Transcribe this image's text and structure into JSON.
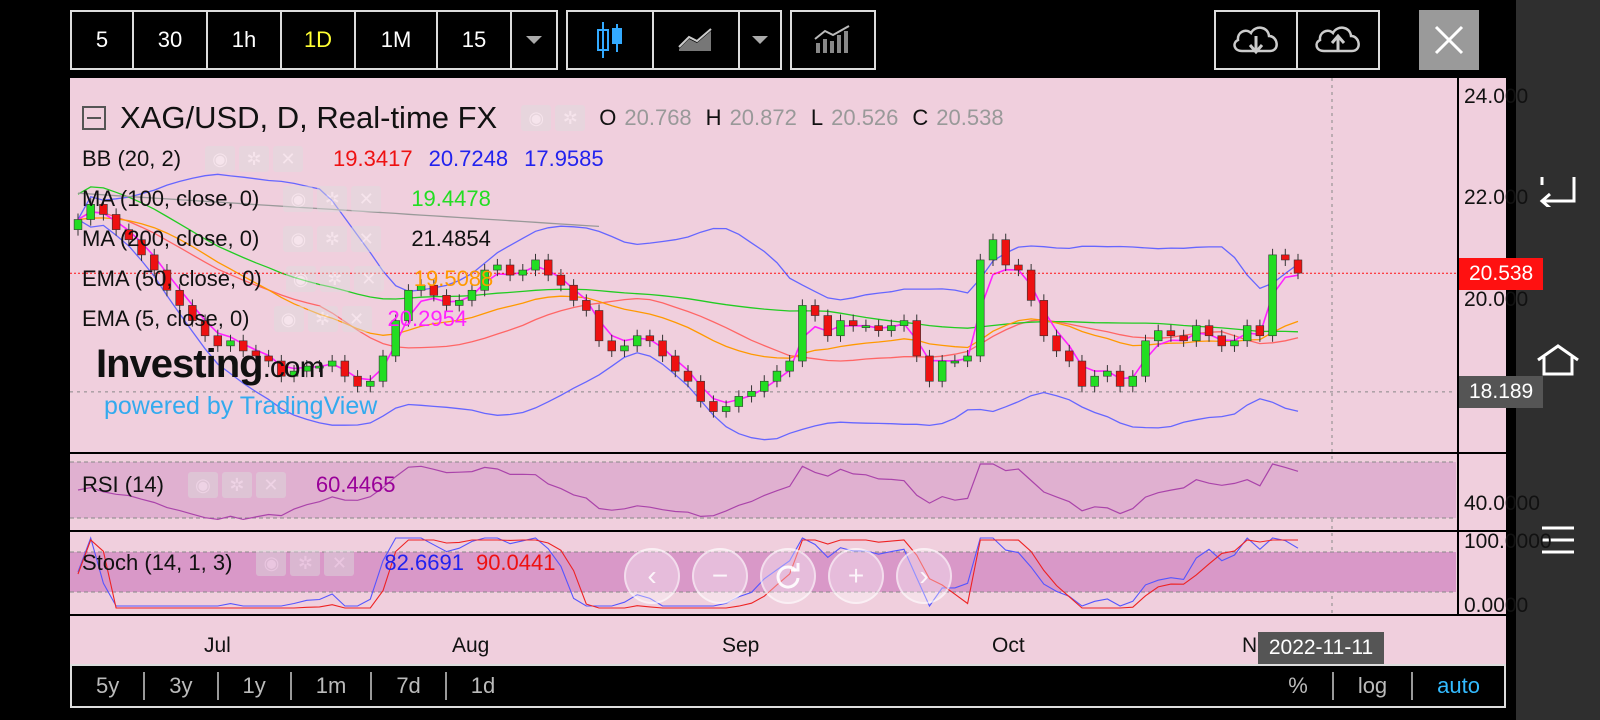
{
  "toolbar": {
    "intervals": [
      "5",
      "30",
      "1h",
      "1D",
      "1M",
      "15"
    ],
    "active_interval": "1D"
  },
  "legend": {
    "symbol": "XAG/USD, D, Real-time FX",
    "o_label": "O",
    "o_value": "20.768",
    "h_label": "H",
    "h_value": "20.872",
    "l_label": "L",
    "l_value": "20.526",
    "c_label": "C",
    "c_value": "20.538",
    "bb_label": "BB (20, 2)",
    "bb_v1": "19.3417",
    "bb_v2": "20.7248",
    "bb_v3": "17.9585",
    "ma100_label": "MA (100, close, 0)",
    "ma100_value": "19.4478",
    "ma200_label": "MA (200, close, 0)",
    "ma200_value": "21.4854",
    "ema50_label": "EMA (50, close, 0)",
    "ema50_value": "19.5088",
    "ema5_label": "EMA (5, close, 0)",
    "ema5_value": "20.2954",
    "rsi_label": "RSI (14)",
    "rsi_value": "60.4465",
    "stoch_label": "Stoch (14, 1, 3)",
    "stoch_v1": "82.6691",
    "stoch_v2": "90.0441"
  },
  "watermark": {
    "brand": "Investing",
    "brand_suffix": ".com",
    "powered": "powered by TradingView"
  },
  "price_axis": {
    "ticks": [
      "24.000",
      "22.000",
      "20.000"
    ],
    "last_price": "20.538",
    "crosshair_price": "18.189"
  },
  "rsi_axis": {
    "tick": "40.0000"
  },
  "stoch_axis": {
    "tick_top": "100.0000",
    "tick_bottom": "0.0000"
  },
  "time_axis": {
    "labels": [
      "Jul",
      "Aug",
      "Sep",
      "Oct",
      "N"
    ],
    "cursor_date": "2022-11-11"
  },
  "bottom_bar": {
    "ranges": [
      "5y",
      "3y",
      "1y",
      "1m",
      "7d",
      "1d"
    ],
    "percent": "%",
    "log": "log",
    "auto": "auto"
  },
  "colors": {
    "background": "#f0cfdd",
    "up": "#22dd22",
    "down": "#ee1111",
    "bb": "#6666ff",
    "ma100": "#22cc22",
    "ma200": "#999999",
    "ema50": "#ff9900",
    "ema5": "#ff22ff",
    "accent_auto": "#33bbff",
    "last_price_tag": "#ff1111"
  },
  "chart_data": {
    "type": "candlestick",
    "ylim": [
      17.0,
      24.4
    ],
    "closes": [
      21.6,
      21.9,
      21.7,
      21.4,
      21.2,
      20.9,
      20.6,
      20.2,
      19.9,
      19.6,
      19.3,
      19.1,
      19.2,
      19.0,
      18.9,
      18.8,
      18.5,
      18.6,
      18.7,
      18.7,
      18.8,
      18.5,
      18.3,
      18.4,
      18.9,
      19.6,
      20.2,
      20.3,
      20.1,
      19.9,
      20.0,
      20.2,
      20.6,
      20.7,
      20.5,
      20.6,
      20.8,
      20.5,
      20.3,
      20.0,
      19.8,
      19.2,
      19.0,
      19.1,
      19.3,
      19.2,
      18.9,
      18.6,
      18.4,
      18.0,
      17.8,
      17.9,
      18.1,
      18.2,
      18.4,
      18.6,
      18.8,
      19.9,
      19.7,
      19.3,
      19.6,
      19.5,
      19.5,
      19.4,
      19.5,
      19.6,
      18.9,
      18.4,
      18.8,
      18.8,
      18.9,
      20.8,
      21.2,
      20.7,
      20.6,
      20.0,
      19.3,
      19.0,
      18.8,
      18.3,
      18.5,
      18.6,
      18.3,
      18.5,
      19.2,
      19.4,
      19.3,
      19.2,
      19.5,
      19.3,
      19.1,
      19.2,
      19.5,
      19.3,
      20.9,
      20.8,
      20.54
    ]
  }
}
